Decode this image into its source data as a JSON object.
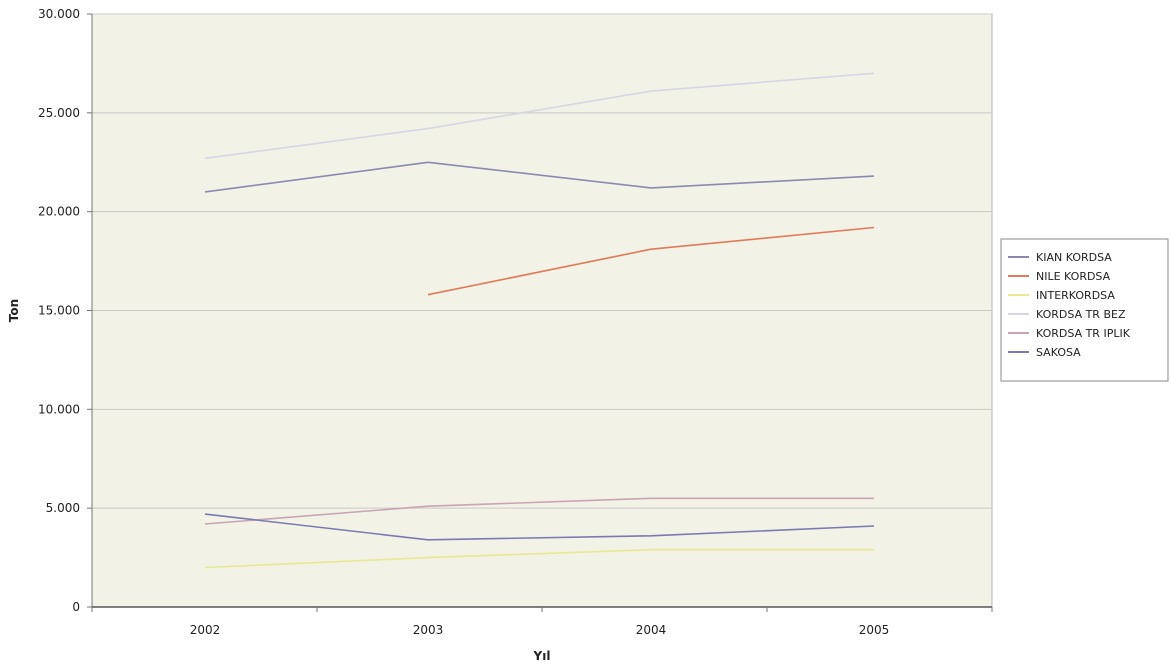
{
  "chart_data": {
    "type": "line",
    "title": "",
    "xlabel": "Yıl",
    "ylabel": "Ton",
    "x": [
      "2002",
      "2003",
      "2004",
      "2005"
    ],
    "ylim": [
      0,
      30000
    ],
    "yticks": [
      "0",
      "5.000",
      "10.000",
      "15.000",
      "20.000",
      "25.000",
      "30.000"
    ],
    "ytick_values": [
      0,
      5000,
      10000,
      15000,
      20000,
      25000,
      30000
    ],
    "grid": true,
    "legend_position": "right",
    "plot_background": "#f2f2e6",
    "gridline_color": "#c9c9c9",
    "series": [
      {
        "name": "KIAN KORDSA",
        "color": "#8a8ab0",
        "values": [
          21000,
          22500,
          21200,
          21800
        ]
      },
      {
        "name": "NILE KORDSA",
        "color": "#e07a5a",
        "values": [
          null,
          15800,
          18100,
          19200
        ]
      },
      {
        "name": "INTERKORDSA",
        "color": "#e8e896",
        "values": [
          2000,
          2500,
          2900,
          2900
        ]
      },
      {
        "name": "KORDSA TR BEZ",
        "color": "#d6d6e6",
        "values": [
          22700,
          24200,
          26100,
          27000
        ]
      },
      {
        "name": "KORDSA TR IPLIK",
        "color": "#c8a4b4",
        "values": [
          4200,
          5100,
          5500,
          5500
        ]
      },
      {
        "name": "SAKOSA",
        "color": "#7a7ab0",
        "values": [
          4700,
          3400,
          3600,
          4100
        ]
      }
    ]
  }
}
